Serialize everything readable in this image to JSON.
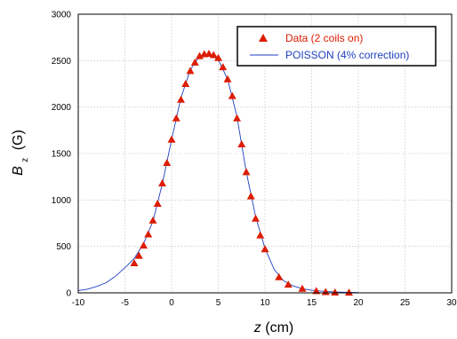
{
  "chart_data": {
    "type": "scatter",
    "xlabel": {
      "var": "z",
      "unit": "(cm)"
    },
    "ylabel": {
      "var": "B",
      "sub": "z",
      "unit": "(G)"
    },
    "xlim": [
      -10,
      30
    ],
    "ylim": [
      0,
      3000
    ],
    "x_ticks": [
      "-10",
      "-5",
      "0",
      "5",
      "10",
      "15",
      "20",
      "25",
      "30"
    ],
    "y_ticks": [
      "0",
      "500",
      "1000",
      "1500",
      "2000",
      "2500",
      "3000"
    ],
    "grid": true,
    "legend_position": "top-right",
    "colors": {
      "data": "#dd1c00",
      "fit": "#1f3fbf"
    },
    "series": [
      {
        "name": "Data (2 coils on)",
        "style": "triangle-marker",
        "points": [
          [
            -4,
            320
          ],
          [
            -3.5,
            400
          ],
          [
            -3,
            510
          ],
          [
            -2.5,
            630
          ],
          [
            -2,
            780
          ],
          [
            -1.5,
            960
          ],
          [
            -1,
            1180
          ],
          [
            -0.5,
            1400
          ],
          [
            0,
            1650
          ],
          [
            0.5,
            1880
          ],
          [
            1,
            2080
          ],
          [
            1.5,
            2250
          ],
          [
            2,
            2390
          ],
          [
            2.5,
            2480
          ],
          [
            3,
            2550
          ],
          [
            3.5,
            2570
          ],
          [
            4,
            2575
          ],
          [
            4.5,
            2560
          ],
          [
            5,
            2530
          ],
          [
            5.5,
            2430
          ],
          [
            6,
            2300
          ],
          [
            6.5,
            2120
          ],
          [
            7,
            1880
          ],
          [
            7.5,
            1600
          ],
          [
            8,
            1300
          ],
          [
            8.5,
            1040
          ],
          [
            9,
            800
          ],
          [
            9.5,
            620
          ],
          [
            10,
            470
          ],
          [
            11.5,
            170
          ],
          [
            12.5,
            90
          ],
          [
            14,
            45
          ],
          [
            15.5,
            20
          ],
          [
            16.5,
            10
          ],
          [
            17.5,
            5
          ],
          [
            19,
            3
          ]
        ]
      },
      {
        "name": "POISSON (4% correction)",
        "style": "line",
        "points": [
          [
            -10,
            25
          ],
          [
            -9,
            40
          ],
          [
            -8,
            70
          ],
          [
            -7,
            110
          ],
          [
            -6,
            180
          ],
          [
            -5,
            270
          ],
          [
            -4,
            370
          ],
          [
            -3,
            530
          ],
          [
            -2,
            770
          ],
          [
            -1,
            1170
          ],
          [
            0,
            1650
          ],
          [
            1,
            2100
          ],
          [
            2,
            2400
          ],
          [
            3,
            2550
          ],
          [
            4,
            2570
          ],
          [
            5,
            2510
          ],
          [
            6,
            2300
          ],
          [
            7,
            1900
          ],
          [
            8,
            1300
          ],
          [
            9,
            820
          ],
          [
            10,
            480
          ],
          [
            11,
            250
          ],
          [
            12,
            130
          ],
          [
            13,
            75
          ],
          [
            14,
            45
          ],
          [
            15,
            28
          ],
          [
            16,
            18
          ],
          [
            17,
            12
          ],
          [
            18,
            8
          ],
          [
            19,
            5
          ],
          [
            20,
            3
          ]
        ]
      }
    ]
  }
}
